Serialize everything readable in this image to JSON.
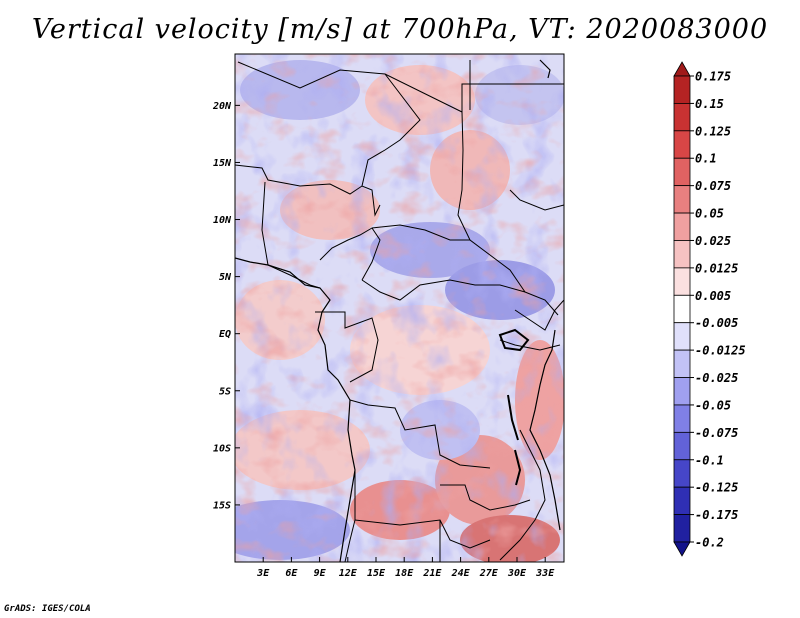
{
  "title": "Vertical velocity [m/s] at 700hPa, VT: 2020083000",
  "credit": "GrADS: IGES/COLA",
  "map": {
    "lat_labels": [
      "20N",
      "15N",
      "10N",
      "5N",
      "EQ",
      "5S",
      "10S",
      "15S"
    ],
    "lat_values": [
      20,
      15,
      10,
      5,
      0,
      -5,
      -10,
      -15
    ],
    "lon_labels": [
      "3E",
      "6E",
      "9E",
      "12E",
      "15E",
      "18E",
      "21E",
      "24E",
      "27E",
      "30E",
      "33E"
    ],
    "lon_values": [
      3,
      6,
      9,
      12,
      15,
      18,
      21,
      24,
      27,
      30,
      33
    ],
    "lon_range": [
      0,
      35
    ],
    "lat_range": [
      -20,
      24.5
    ]
  },
  "colorbar": {
    "labels": [
      "0.175",
      "0.15",
      "0.125",
      "0.1",
      "0.075",
      "0.05",
      "0.025",
      "0.0125",
      "0.005",
      "-0.005",
      "-0.0125",
      "-0.025",
      "-0.05",
      "-0.075",
      "-0.1",
      "-0.125",
      "-0.175",
      "-0.2"
    ],
    "colors": [
      "#a01a1a",
      "#b42323",
      "#c83232",
      "#d84646",
      "#e06262",
      "#e88080",
      "#f0a0a0",
      "#f6c2c2",
      "#fbe0e0",
      "#ffffff",
      "#e0e0fb",
      "#c2c2f6",
      "#a0a0f0",
      "#8080e6",
      "#6262d8",
      "#4646c8",
      "#2f2fb4",
      "#2020a0",
      "#12128a"
    ]
  }
}
